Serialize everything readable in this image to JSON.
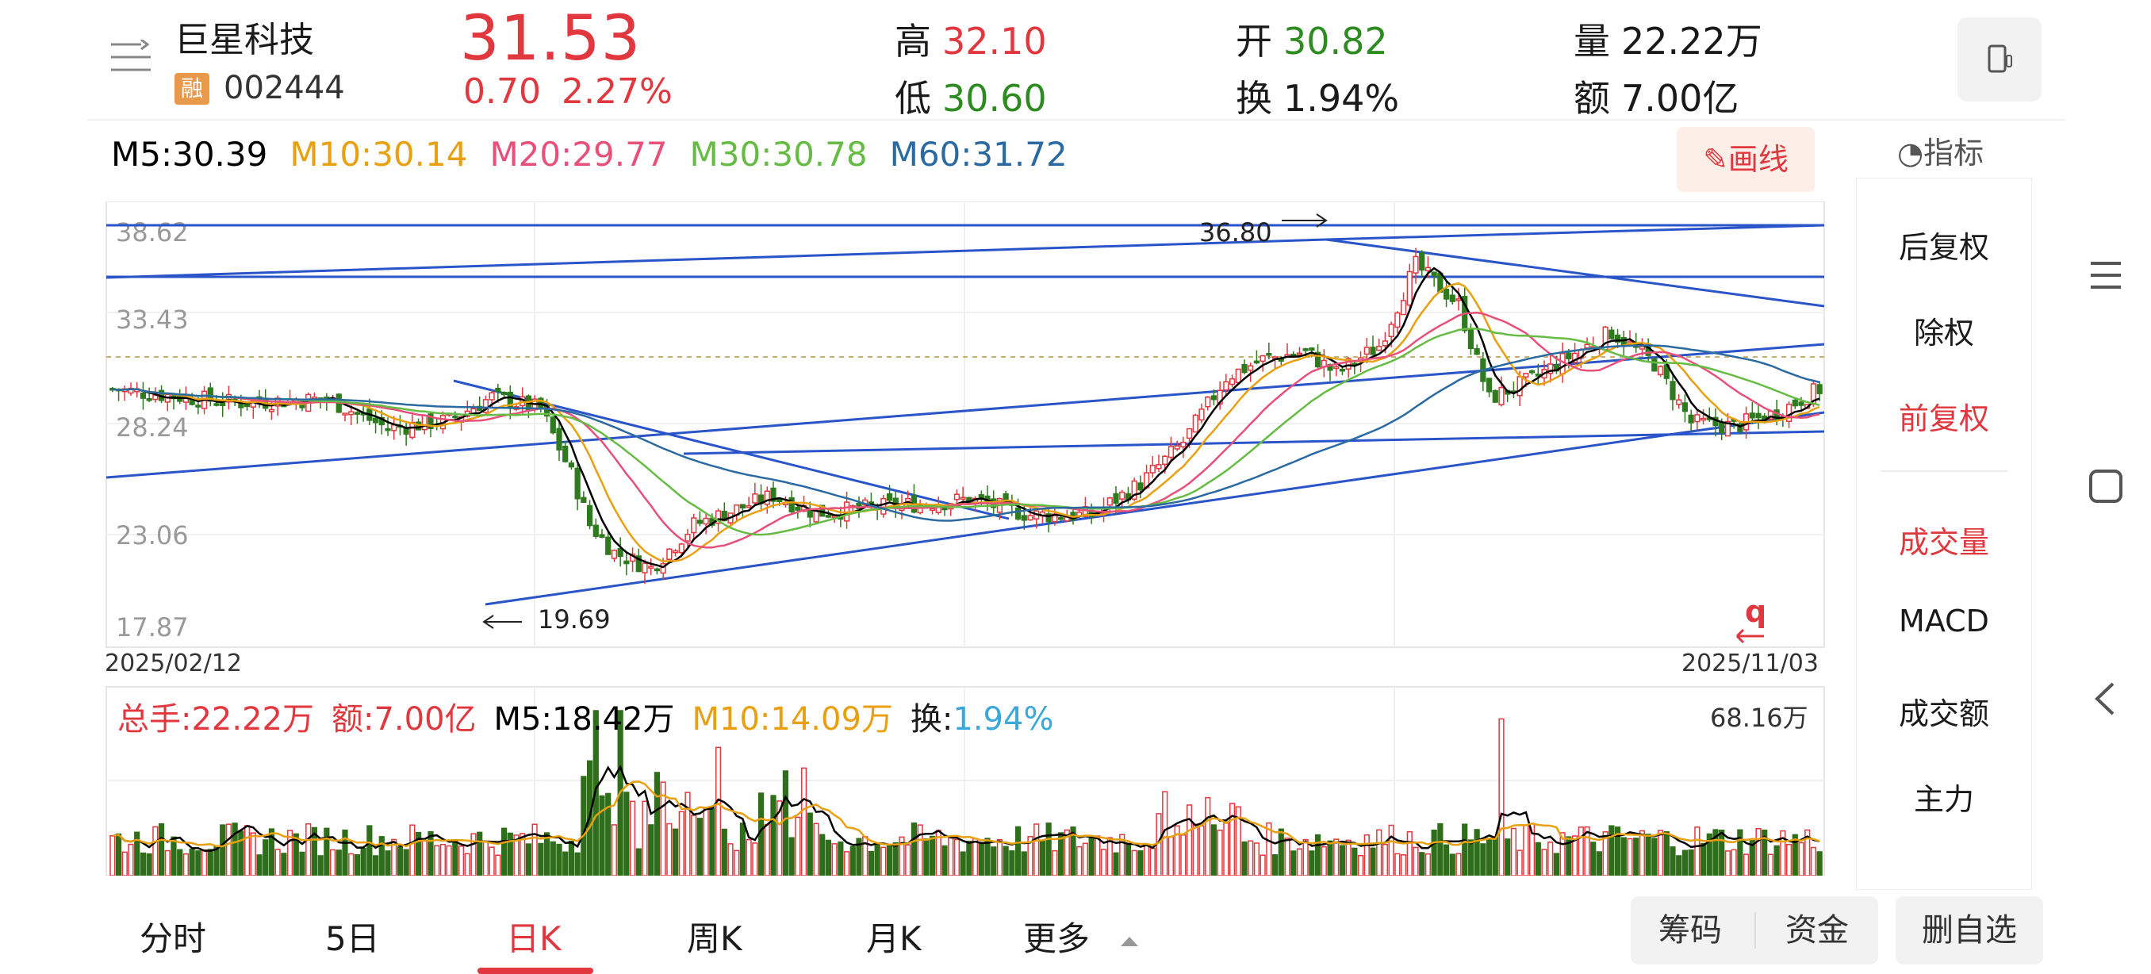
{
  "stock": {
    "name": "巨星科技",
    "badge": "融",
    "code": "002444",
    "price": "31.53",
    "change": "0.70",
    "change_pct": "2.27%"
  },
  "stats": {
    "high_label": "高",
    "high": "32.10",
    "low_label": "低",
    "low": "30.60",
    "open_label": "开",
    "open": "30.82",
    "turnover_label": "换",
    "turnover": "1.94%",
    "volume_label": "量",
    "volume": "22.22万",
    "amount_label": "额",
    "amount": "7.00亿"
  },
  "ma": {
    "m5": "M5:30.39",
    "m10": "M10:30.14",
    "m20": "M20:29.77",
    "m30": "M30:30.78",
    "m60": "M60:31.72"
  },
  "toolbar": {
    "draw_label": "画线",
    "indicator_label": "指标"
  },
  "chart_data": {
    "type": "candlestick",
    "y_ticks": [
      "38.62",
      "33.43",
      "28.24",
      "23.06",
      "17.87"
    ],
    "ylim": [
      17.87,
      38.62
    ],
    "start_date": "2025/02/12",
    "end_date": "2025/11/03",
    "annotations": {
      "high_value": "36.80",
      "low_value": "19.69"
    },
    "watermark": "q"
  },
  "volume": {
    "total_label": "总手:22.22万",
    "amount_label": "额:7.00亿",
    "m5_label": "M5:18.42万",
    "m10_label": "M10:14.09万",
    "turnover_key": "换:",
    "turnover_value": "1.94%",
    "max_label": "68.16万"
  },
  "side_panel": {
    "items": [
      "后复权",
      "除权",
      "前复权",
      "成交量",
      "MACD",
      "成交额",
      "主力"
    ]
  },
  "tabs": [
    "分时",
    "5日",
    "日K",
    "周K",
    "月K",
    "更多"
  ],
  "buttons": {
    "chips": "筹码",
    "funds": "资金",
    "delete": "删自选"
  },
  "colors": {
    "red": "#e0383e",
    "green": "#2e8b22",
    "ma5": "#000000",
    "ma10": "#e8a010",
    "ma20": "#e8507a",
    "ma30": "#66bb44",
    "ma60": "#2a6aa0",
    "trendline": "#2a55c8"
  }
}
